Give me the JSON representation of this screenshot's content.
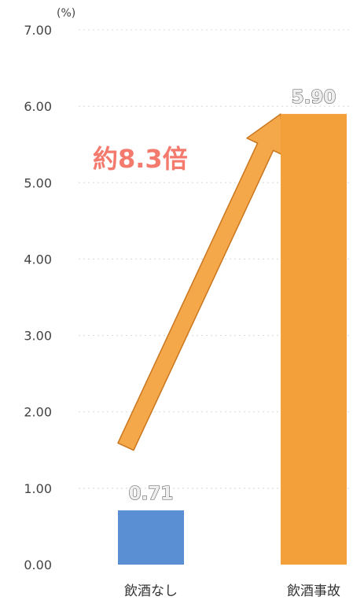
{
  "chart_data": {
    "type": "bar",
    "unit": "(%)",
    "categories": [
      "飲酒なし",
      "飲酒事故"
    ],
    "values": [
      0.71,
      5.9
    ],
    "value_labels": [
      "0.71",
      "5.90"
    ],
    "colors": [
      "#5b8fd4",
      "#f3a03a"
    ],
    "ylim": [
      0,
      7
    ],
    "yticks": [
      "0.00",
      "1.00",
      "2.00",
      "3.00",
      "4.00",
      "5.00",
      "6.00",
      "7.00"
    ],
    "grid": true,
    "annotation": {
      "text": "約8.3倍",
      "color": "#f47a6e",
      "arrow_color": "#f5a84a"
    }
  }
}
